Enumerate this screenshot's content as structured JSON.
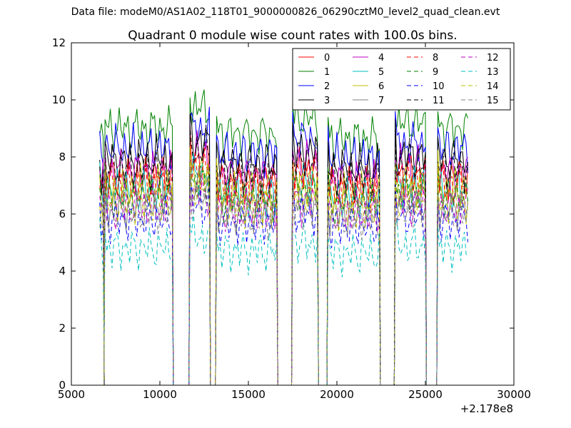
{
  "figure": {
    "supertitle": "Data file: modeM0/AS1A02_118T01_9000000826_06290cztM0_level2_quad_clean.evt"
  },
  "chart_data": {
    "type": "line",
    "title": "Quadrant 0 module wise count rates with 100.0s bins.",
    "xlabel": "",
    "ylabel": "",
    "x_offset_label": "+2.178e8",
    "xlim": [
      5000,
      30000
    ],
    "ylim": [
      0,
      12
    ],
    "x_ticks": [
      5000,
      10000,
      15000,
      20000,
      25000,
      30000
    ],
    "y_ticks": [
      0,
      2,
      4,
      6,
      8,
      10,
      12
    ],
    "legend_position": "upper right, 4 columns",
    "segments": [
      {
        "start": 6600,
        "end": 6800
      },
      {
        "start": 6900,
        "end": 10700
      },
      {
        "start": 11700,
        "end": 12800
      },
      {
        "start": 13200,
        "end": 16600
      },
      {
        "start": 17500,
        "end": 18900
      },
      {
        "start": 19500,
        "end": 22400
      },
      {
        "start": 23300,
        "end": 25000
      },
      {
        "start": 25700,
        "end": 27400
      }
    ],
    "segment_multipliers": [
      0.95,
      1.0,
      1.08,
      0.98,
      1.04,
      0.96,
      1.02,
      1.0
    ],
    "series": [
      {
        "name": "0",
        "color": "#ff0000",
        "style": "solid",
        "level": 7.3
      },
      {
        "name": "1",
        "color": "#008000",
        "style": "solid",
        "level": 9.0
      },
      {
        "name": "2",
        "color": "#0000ff",
        "style": "solid",
        "level": 8.3
      },
      {
        "name": "3",
        "color": "#000000",
        "style": "solid",
        "level": 7.9
      },
      {
        "name": "4",
        "color": "#bf00bf",
        "style": "solid",
        "level": 7.5
      },
      {
        "name": "5",
        "color": "#00bfbf",
        "style": "solid",
        "level": 6.8
      },
      {
        "name": "6",
        "color": "#bfbf00",
        "style": "solid",
        "level": 6.9
      },
      {
        "name": "7",
        "color": "#808080",
        "style": "solid",
        "level": 6.3
      },
      {
        "name": "8",
        "color": "#ff0000",
        "style": "dashed",
        "level": 7.0
      },
      {
        "name": "9",
        "color": "#008000",
        "style": "dashed",
        "level": 6.6
      },
      {
        "name": "10",
        "color": "#0000ff",
        "style": "dashed",
        "level": 5.8
      },
      {
        "name": "11",
        "color": "#000000",
        "style": "dashed",
        "level": 7.6
      },
      {
        "name": "12",
        "color": "#bf00bf",
        "style": "dashed",
        "level": 6.2
      },
      {
        "name": "13",
        "color": "#00bfbf",
        "style": "dashed",
        "level": 4.8
      },
      {
        "name": "14",
        "color": "#bfbf00",
        "style": "dashed",
        "level": 6.4
      },
      {
        "name": "15",
        "color": "#808080",
        "style": "dashed",
        "level": 6.0
      }
    ]
  }
}
